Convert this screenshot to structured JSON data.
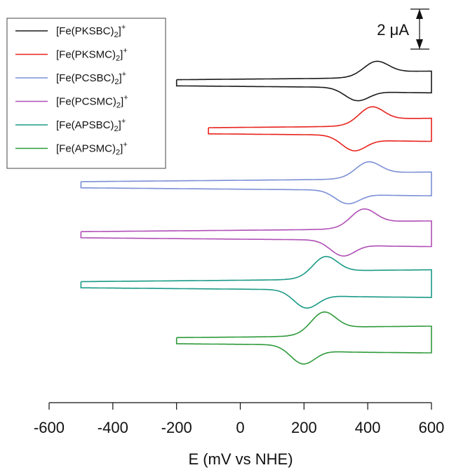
{
  "chart_data": {
    "type": "line",
    "title": "",
    "xlabel": "E (mV vs NHE)",
    "ylabel": "",
    "xlim": [
      -600,
      600
    ],
    "xticks": [
      "-600",
      "-400",
      "-200",
      "0",
      "200",
      "400",
      "600"
    ],
    "scale_bar": {
      "label": "2 μA",
      "value_uA": 2
    },
    "legend": {
      "placement": "top-left",
      "frame": true
    },
    "series": [
      {
        "name": "[Fe(PKSBC)2]+",
        "base": "[Fe(PKSBC)",
        "sub": "2",
        "sup": "+",
        "color": "#1a1a1a",
        "e_start": -200,
        "e_end": 600,
        "epa": 425,
        "epc": 365,
        "peak_height_uA": 1.45,
        "offset_uA": 0.0
      },
      {
        "name": "[Fe(PKSMC)2]+",
        "base": "[Fe(PKSMC)",
        "sub": "2",
        "sup": "+",
        "color": "#e8231c",
        "e_start": -100,
        "e_end": 600,
        "epa": 410,
        "epc": 355,
        "peak_height_uA": 1.7,
        "offset_uA": -2.4
      },
      {
        "name": "[Fe(PCSBC)2]+",
        "base": "[Fe(PCSBC)",
        "sub": "2",
        "sup": "+",
        "color": "#7b8fd6",
        "e_start": -500,
        "e_end": 600,
        "epa": 400,
        "epc": 335,
        "peak_height_uA": 1.5,
        "offset_uA": -5.1
      },
      {
        "name": "[Fe(PCSMC)2]+",
        "base": "[Fe(PCSMC)",
        "sub": "2",
        "sup": "+",
        "color": "#b04fb6",
        "e_start": -500,
        "e_end": 600,
        "epa": 385,
        "epc": 320,
        "peak_height_uA": 1.75,
        "offset_uA": -7.6
      },
      {
        "name": "[Fe(APSBC)2]+",
        "base": "[Fe(APSBC)",
        "sub": "2",
        "sup": "+",
        "color": "#1a9a86",
        "e_start": -500,
        "e_end": 600,
        "epa": 265,
        "epc": 205,
        "peak_height_uA": 2.0,
        "offset_uA": -10.1
      },
      {
        "name": "[Fe(APSMC)2]+",
        "base": "[Fe(APSMC)",
        "sub": "2",
        "sup": "+",
        "color": "#2e9a3a",
        "e_start": -200,
        "e_end": 600,
        "epa": 260,
        "epc": 195,
        "peak_height_uA": 2.1,
        "offset_uA": -12.9
      }
    ]
  }
}
